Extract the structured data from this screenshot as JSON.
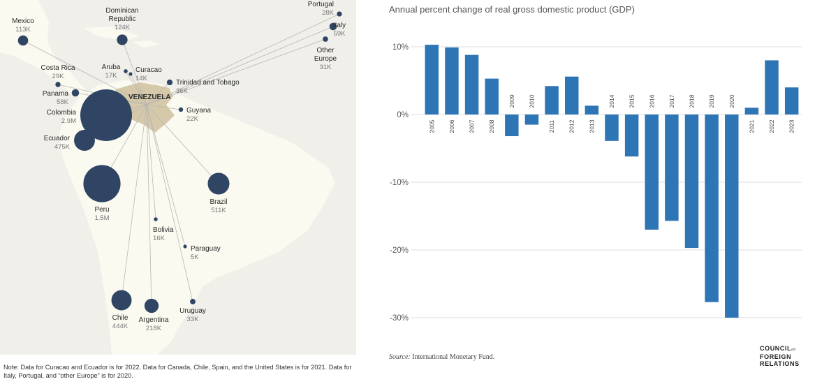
{
  "map": {
    "title": "VENEZUELA",
    "note": "Note: Data for Curacao and Ecuador is for 2022. Data for Canada, Chile, Spain, and the United States is for 2021. Data for Italy, Portugal, and “other Europe” is for 2020.",
    "destinations": [
      {
        "name": "Mexico",
        "value": "113K",
        "people": 113000
      },
      {
        "name": "Dominican Republic",
        "value": "124K",
        "people": 124000
      },
      {
        "name": "Portugal",
        "value": "28K",
        "people": 28000
      },
      {
        "name": "Italy",
        "value": "59K",
        "people": 59000
      },
      {
        "name": "Other Europe",
        "value": "31K",
        "people": 31000
      },
      {
        "name": "Costa Rica",
        "value": "29K",
        "people": 29000
      },
      {
        "name": "Aruba",
        "value": "17K",
        "people": 17000
      },
      {
        "name": "Curacao",
        "value": "14K",
        "people": 14000
      },
      {
        "name": "Trinidad and Tobago",
        "value": "36K",
        "people": 36000
      },
      {
        "name": "Panama",
        "value": "58K",
        "people": 58000
      },
      {
        "name": "Colombia",
        "value": "2.9M",
        "people": 2900000
      },
      {
        "name": "Guyana",
        "value": "22K",
        "people": 22000
      },
      {
        "name": "Ecuador",
        "value": "475K",
        "people": 475000
      },
      {
        "name": "Peru",
        "value": "1.5M",
        "people": 1500000
      },
      {
        "name": "Brazil",
        "value": "511K",
        "people": 511000
      },
      {
        "name": "Bolivia",
        "value": "16K",
        "people": 16000
      },
      {
        "name": "Paraguay",
        "value": "5K",
        "people": 5000
      },
      {
        "name": "Chile",
        "value": "444K",
        "people": 444000
      },
      {
        "name": "Argentina",
        "value": "218K",
        "people": 218000
      },
      {
        "name": "Uruguay",
        "value": "33K",
        "people": 33000
      }
    ]
  },
  "chart_data": {
    "type": "bar",
    "title": "Annual percent change of real gross domestic product (GDP)",
    "categories": [
      "2005",
      "2006",
      "2007",
      "2008",
      "2009",
      "2010",
      "2011",
      "2012",
      "2013",
      "2014",
      "2015",
      "2016",
      "2017",
      "2018",
      "2019",
      "2020",
      "2021",
      "2022",
      "2023"
    ],
    "values": [
      10.3,
      9.9,
      8.8,
      5.3,
      -3.2,
      -1.5,
      4.2,
      5.6,
      1.3,
      -3.9,
      -6.2,
      -17.0,
      -15.7,
      -19.7,
      -27.7,
      -30.0,
      1.0,
      8.0,
      4.0
    ],
    "ylim": [
      -30,
      10
    ],
    "yticks": [
      10,
      0,
      -10,
      -20,
      -30
    ],
    "ytick_labels": [
      "10%",
      "0%",
      "-10%",
      "-20%",
      "-30%"
    ],
    "xlabel": "",
    "ylabel": "",
    "bar_color": "#2e75b6",
    "grid": true
  },
  "source": {
    "label": "Source:",
    "text": "International Monetary Fund."
  },
  "logo": {
    "line1": "COUNCIL",
    "small": "on",
    "line2": "FOREIGN",
    "line3": "RELATIONS"
  },
  "colors": {
    "map_bg": "#f0efea",
    "land": "#fbfaf0",
    "venezuela": "#d6c9aa",
    "bubble": "#2f4563",
    "flow": "#b8b8b2"
  }
}
